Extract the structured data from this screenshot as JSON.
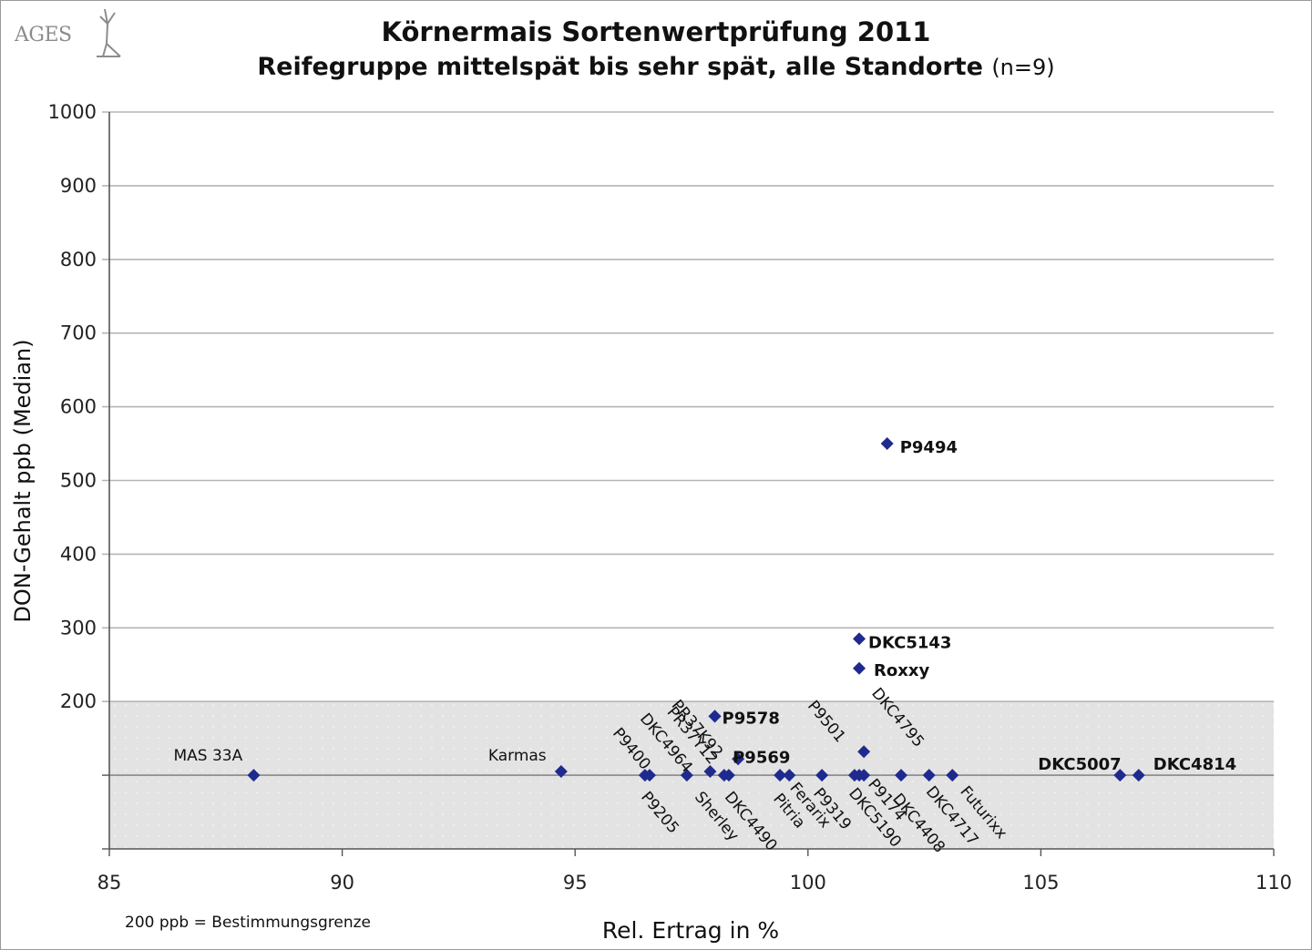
{
  "logo": {
    "text": "AGES",
    "icon": "ages-figure-icon"
  },
  "footnote": "200 ppb = Bestimmungsgrenze",
  "colors": {
    "marker": "#1f2a8f",
    "shade": "#e3e3e3",
    "grid": "#b5b5b5",
    "text": "#111111"
  },
  "chart_data": {
    "type": "scatter",
    "title": "Körnermais Sortenwertprüfung 2011",
    "subtitle_main": "Reifegruppe mittelspät bis sehr spät, alle Standorte",
    "subtitle_n": "(n=9)",
    "xlabel": "Rel. Ertrag in %",
    "ylabel": "DON-Gehalt ppb (Median)",
    "xlim": [
      85,
      110
    ],
    "ylim": [
      0,
      1000
    ],
    "xticks": [
      85,
      90,
      95,
      100,
      105,
      110
    ],
    "yticks": [
      200,
      300,
      400,
      500,
      600,
      700,
      800,
      900,
      1000
    ],
    "grid": true,
    "shaded_band": {
      "from": 0,
      "to": 200,
      "meaning": "200 ppb = Bestimmungsgrenze"
    },
    "reference_line_y": 100,
    "points": [
      {
        "label": "MAS 33A",
        "x": 88.1,
        "y": 100
      },
      {
        "label": "Karmas",
        "x": 94.7,
        "y": 105
      },
      {
        "label": "P9400",
        "x": 96.5,
        "y": 100
      },
      {
        "label": "P9205",
        "x": 96.6,
        "y": 100
      },
      {
        "label": "DKC4964",
        "x": 97.4,
        "y": 100
      },
      {
        "label": "PR37Y12",
        "x": 97.9,
        "y": 105
      },
      {
        "label": "Sherley",
        "x": 98.3,
        "y": 100
      },
      {
        "label": "PR37K92",
        "x": 98.0,
        "y": 180
      },
      {
        "label": "P9578",
        "x": 98.0,
        "y": 180
      },
      {
        "label": "P9569",
        "x": 98.5,
        "y": 122
      },
      {
        "label": "DKC4490",
        "x": 98.2,
        "y": 100
      },
      {
        "label": "Pitria",
        "x": 99.4,
        "y": 100
      },
      {
        "label": "Ferarix",
        "x": 99.6,
        "y": 100
      },
      {
        "label": "P9319",
        "x": 100.3,
        "y": 100
      },
      {
        "label": "P9501",
        "x": 101.0,
        "y": 100
      },
      {
        "label": "DKC5190",
        "x": 101.1,
        "y": 100
      },
      {
        "label": "P9174",
        "x": 101.2,
        "y": 100
      },
      {
        "label": "DKC4795",
        "x": 101.2,
        "y": 132
      },
      {
        "label": "DKC4408",
        "x": 102.0,
        "y": 100
      },
      {
        "label": "DKC4717",
        "x": 102.6,
        "y": 100
      },
      {
        "label": "Futurixx",
        "x": 103.1,
        "y": 100
      },
      {
        "label": "DKC5007",
        "x": 106.7,
        "y": 100
      },
      {
        "label": "DKC4814",
        "x": 107.1,
        "y": 100
      },
      {
        "label": "DKC5143",
        "x": 101.1,
        "y": 285
      },
      {
        "label": "Roxxy",
        "x": 101.1,
        "y": 245
      },
      {
        "label": "P9494",
        "x": 101.7,
        "y": 550
      }
    ]
  }
}
